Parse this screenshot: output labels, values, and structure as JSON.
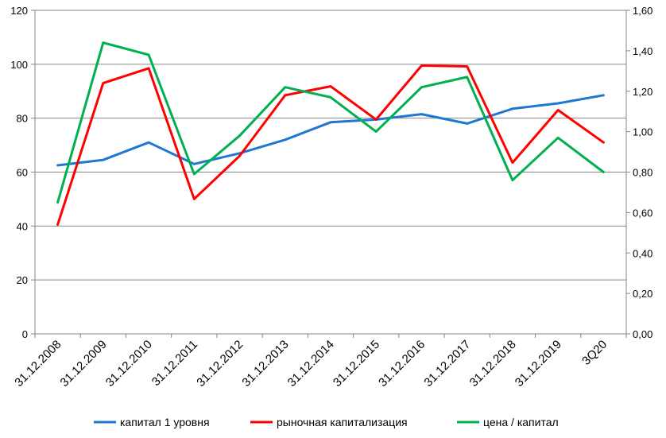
{
  "chart_data": {
    "type": "line",
    "title": "",
    "categories": [
      "31.12.2008",
      "31.12.2009",
      "31.12.2010",
      "31.12.2011",
      "31.12.2012",
      "31.12.2013",
      "31.12.2014",
      "31.12.2015",
      "31.12.2016",
      "31.12.2017",
      "31.12.2018",
      "31.12.2019",
      "3Q20"
    ],
    "y_left": {
      "min": 0,
      "max": 120,
      "ticks": [
        "0",
        "20",
        "40",
        "60",
        "80",
        "100",
        "120"
      ]
    },
    "y_right": {
      "min": 0,
      "max": 1.6,
      "ticks": [
        "0,00",
        "0,20",
        "0,40",
        "0,60",
        "0,80",
        "1,00",
        "1,20",
        "1,40",
        "1,60"
      ]
    },
    "grid": true,
    "legend_position": "bottom",
    "series": [
      {
        "name": "капитал 1 уровня",
        "axis": "left",
        "color": "#1f77d4",
        "values": [
          62.5,
          64.5,
          71,
          63,
          67,
          72,
          78.5,
          79.5,
          81.5,
          78,
          83.5,
          85.5,
          88.5
        ]
      },
      {
        "name": "рыночная капитализация",
        "axis": "left",
        "color": "#ff0000",
        "values": [
          40.5,
          93,
          98.5,
          50,
          66,
          88.5,
          91.8,
          79.5,
          99.5,
          99.2,
          63.5,
          83,
          71
        ]
      },
      {
        "name": "цена / капитал",
        "axis": "right",
        "color": "#00b050",
        "values": [
          0.65,
          1.44,
          1.38,
          0.79,
          0.98,
          1.22,
          1.17,
          1.0,
          1.22,
          1.27,
          0.76,
          0.97,
          0.8
        ]
      }
    ]
  }
}
